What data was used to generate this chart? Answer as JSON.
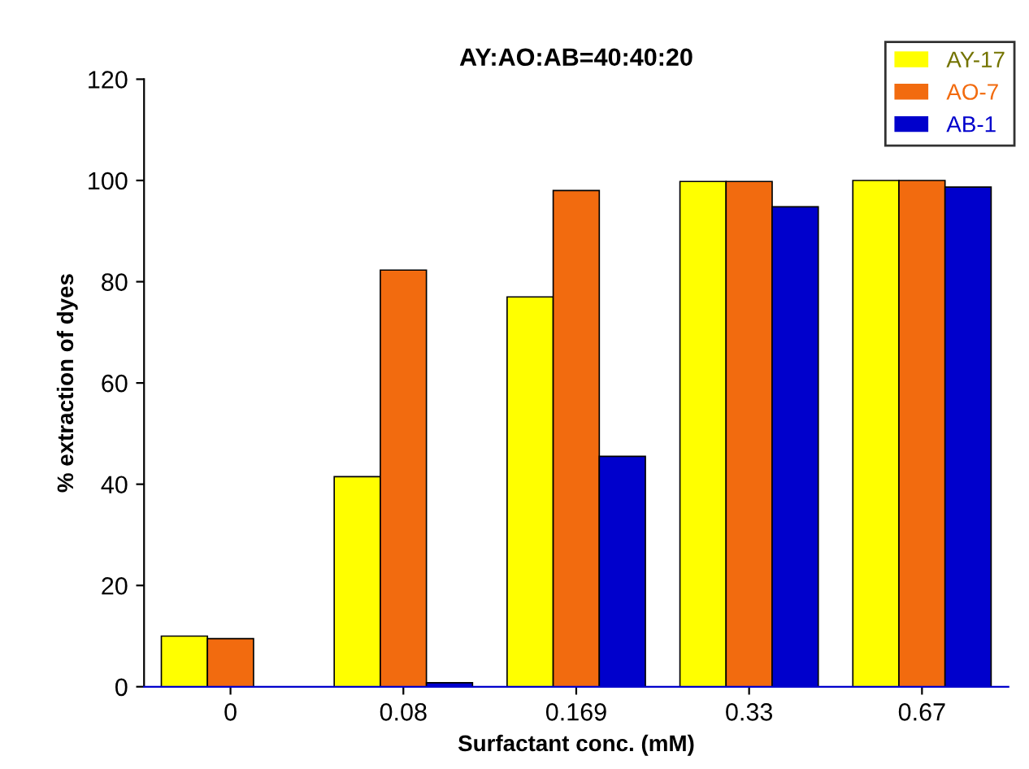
{
  "chart_data": {
    "type": "bar",
    "title": "AY:AO:AB=40:40:20",
    "xlabel": "Surfactant conc. (mM)",
    "ylabel": "% extraction of dyes",
    "categories": [
      "0",
      "0.08",
      "0.169",
      "0.33",
      "0.67"
    ],
    "series": [
      {
        "name": "AY-17",
        "color": "#ffff00",
        "values": [
          10,
          41.5,
          77,
          99.8,
          100
        ]
      },
      {
        "name": "AO-7",
        "color": "#f26b0f",
        "values": [
          9.5,
          82.3,
          98,
          99.8,
          100
        ]
      },
      {
        "name": "AB-1",
        "color": "#0000cc",
        "values": [
          null,
          0.8,
          45.5,
          94.8,
          98.7
        ]
      }
    ],
    "ylim": [
      0,
      120
    ],
    "yticks": [
      0,
      20,
      40,
      60,
      80,
      100,
      120
    ],
    "grid": false,
    "legend": "top right"
  }
}
